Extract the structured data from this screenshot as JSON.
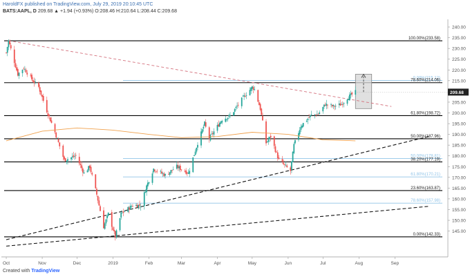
{
  "header": {
    "publisher_line": "HaroldFX published on TradingView.com, July 29, 2019 20:10:45 UTC",
    "symbol": "BATS:AAPL, D",
    "ohlc": "209.68 ▲ +1.94 (+0.93%) O:208.46 H:210.64 L:208.44 C:209.68"
  },
  "footer": {
    "prefix": "Created with",
    "brand": "TradingView"
  },
  "colors": {
    "candle_up": "#26a69a",
    "candle_down": "#ef5350",
    "ma_line": "#f0a04b",
    "fib_line": "#000000",
    "fib_light_line": "#90c4e8",
    "downtrend_line": "#d4707c",
    "price_tag": "#222222"
  },
  "chart_data": {
    "type": "candlestick",
    "title": "",
    "x_ticks": [
      "Oct",
      "Nov",
      "Dec",
      "2019",
      "Feb",
      "Mar",
      "Apr",
      "May",
      "Jun",
      "Jul",
      "Aug",
      "Sep"
    ],
    "y_ticks": [
      145,
      150,
      155,
      160,
      165,
      170,
      175,
      180,
      185,
      190,
      195,
      200,
      205,
      210,
      215,
      220,
      225,
      230,
      235,
      240
    ],
    "ylim": [
      142.3,
      241.3
    ],
    "last_price": "209.68",
    "price_anchors": [
      {
        "date": "2018-10-01",
        "price": 228.0
      },
      {
        "date": "2018-10-03",
        "price": 233.6
      },
      {
        "date": "2018-10-11",
        "price": 218.0
      },
      {
        "date": "2018-10-16",
        "price": 221.0
      },
      {
        "date": "2018-10-24",
        "price": 215.0
      },
      {
        "date": "2018-10-29",
        "price": 212.0
      },
      {
        "date": "2018-11-05",
        "price": 201.0
      },
      {
        "date": "2018-11-12",
        "price": 191.0
      },
      {
        "date": "2018-11-20",
        "price": 178.0
      },
      {
        "date": "2018-11-30",
        "price": 180.0
      },
      {
        "date": "2018-12-07",
        "price": 172.0
      },
      {
        "date": "2018-12-12",
        "price": 175.0
      },
      {
        "date": "2018-12-18",
        "price": 162.0
      },
      {
        "date": "2018-12-24",
        "price": 147.0
      },
      {
        "date": "2018-12-28",
        "price": 153.0
      },
      {
        "date": "2019-01-03",
        "price": 142.3
      },
      {
        "date": "2019-01-08",
        "price": 153.0
      },
      {
        "date": "2019-01-18",
        "price": 157.0
      },
      {
        "date": "2019-01-25",
        "price": 157.0
      },
      {
        "date": "2019-01-30",
        "price": 166.0
      },
      {
        "date": "2019-02-05",
        "price": 174.0
      },
      {
        "date": "2019-02-15",
        "price": 171.0
      },
      {
        "date": "2019-02-25",
        "price": 175.0
      },
      {
        "date": "2019-03-07",
        "price": 172.0
      },
      {
        "date": "2019-03-15",
        "price": 186.0
      },
      {
        "date": "2019-03-21",
        "price": 195.0
      },
      {
        "date": "2019-03-25",
        "price": 188.0
      },
      {
        "date": "2019-04-05",
        "price": 197.0
      },
      {
        "date": "2019-04-12",
        "price": 198.5
      },
      {
        "date": "2019-04-23",
        "price": 207.0
      },
      {
        "date": "2019-05-01",
        "price": 212.0
      },
      {
        "date": "2019-05-03",
        "price": 211.0
      },
      {
        "date": "2019-05-08",
        "price": 202.0
      },
      {
        "date": "2019-05-13",
        "price": 186.0
      },
      {
        "date": "2019-05-17",
        "price": 189.0
      },
      {
        "date": "2019-05-24",
        "price": 178.0
      },
      {
        "date": "2019-06-03",
        "price": 173.0
      },
      {
        "date": "2019-06-06",
        "price": 185.0
      },
      {
        "date": "2019-06-12",
        "price": 194.0
      },
      {
        "date": "2019-06-21",
        "price": 199.0
      },
      {
        "date": "2019-06-27",
        "price": 199.5
      },
      {
        "date": "2019-07-03",
        "price": 204.0
      },
      {
        "date": "2019-07-10",
        "price": 203.0
      },
      {
        "date": "2019-07-17",
        "price": 204.0
      },
      {
        "date": "2019-07-22",
        "price": 207.0
      },
      {
        "date": "2019-07-29",
        "price": 209.68
      }
    ],
    "moving_average": [
      {
        "date": "2018-10-01",
        "value": 187.0
      },
      {
        "date": "2018-11-01",
        "value": 191.5
      },
      {
        "date": "2018-12-01",
        "value": 193.0
      },
      {
        "date": "2019-01-01",
        "value": 192.0
      },
      {
        "date": "2019-02-01",
        "value": 190.0
      },
      {
        "date": "2019-03-01",
        "value": 188.5
      },
      {
        "date": "2019-04-01",
        "value": 189.0
      },
      {
        "date": "2019-05-01",
        "value": 191.0
      },
      {
        "date": "2019-06-01",
        "value": 190.0
      },
      {
        "date": "2019-07-01",
        "value": 187.5
      },
      {
        "date": "2019-07-29",
        "value": 187.0
      }
    ],
    "fib_levels_black": [
      {
        "label": "100.00%(233.58)",
        "price": 233.58
      },
      {
        "label": "78.60%(214.06)",
        "price": 214.06
      },
      {
        "label": "61.80%(198.72)",
        "price": 198.72
      },
      {
        "label": "50.00%(187.96)",
        "price": 187.96
      },
      {
        "label": "38.20%(177.19)",
        "price": 177.19
      },
      {
        "label": "23.60%(163.87)",
        "price": 163.87
      },
      {
        "label": "0.00%(142.33)",
        "price": 142.33
      }
    ],
    "fib_levels_light": [
      {
        "label": "0.00%(215.12)",
        "price": 215.12
      },
      {
        "label": "50.00%(178.81)",
        "price": 178.81
      },
      {
        "label": "61.80%(170.21)",
        "price": 170.21
      },
      {
        "label": "78.60%(157.98)",
        "price": 157.98
      }
    ],
    "trendlines": [
      {
        "name": "downtrend",
        "style": "dashed",
        "from": {
          "date": "2018-10-03",
          "price": 233.6
        },
        "to": {
          "date": "2019-08-29",
          "price": 203.0
        }
      },
      {
        "name": "support-1",
        "style": "dashed",
        "from": {
          "date": "2018-10-01",
          "price": 141.0
        },
        "to": {
          "date": "2019-09-30",
          "price": 189.0
        }
      },
      {
        "name": "support-2",
        "style": "dashed",
        "from": {
          "date": "2018-10-01",
          "price": 138.0
        },
        "to": {
          "date": "2019-09-30",
          "price": 156.5
        }
      }
    ],
    "projection_box": {
      "from": {
        "date": "2019-07-29",
        "price": 202.0
      },
      "to": {
        "date": "2019-08-12",
        "price": 218.0
      },
      "arrow_top": 218.0
    }
  }
}
